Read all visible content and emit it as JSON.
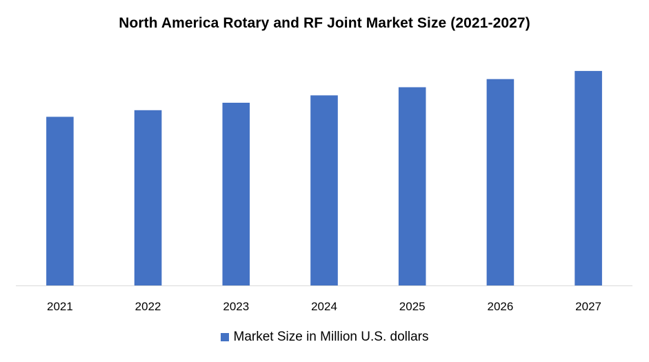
{
  "colors": {
    "bar": "#4472C4",
    "axis": "#D9D9D9",
    "text": "#000000",
    "background": "#FFFFFF"
  },
  "chart_data": {
    "type": "bar",
    "title": "North America Rotary and RF Joint Market Size (2021-2027)",
    "xlabel": "",
    "ylabel": "",
    "categories": [
      "2021",
      "2022",
      "2023",
      "2024",
      "2025",
      "2026",
      "2027"
    ],
    "series": [
      {
        "name": "Market Size in Million U.S. dollars",
        "values": [
          228,
          237,
          247,
          257,
          268,
          279,
          290
        ]
      }
    ],
    "ylim": [
      0,
      330
    ],
    "grid": false,
    "y_axis_visible": false,
    "legend_position": "bottom"
  }
}
